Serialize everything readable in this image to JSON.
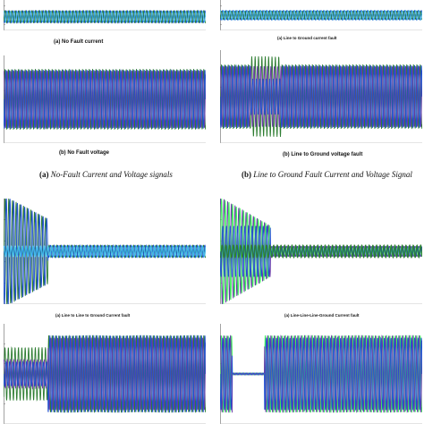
{
  "figure": {
    "group_a": {
      "label": "(a)",
      "text": "No-Fault Current and Voltage signals"
    },
    "group_b": {
      "label": "(b)",
      "text": "Line to Ground Fault Current and Voltage Signal"
    }
  },
  "colors": {
    "phase_a": "#1f4fd1",
    "phase_b": "#2e7d32",
    "phase_c": "#42b8e8",
    "phase_d": "#6a3aa8",
    "phase_e": "#3ef05a",
    "axis": "#666666"
  },
  "chart_data": [
    {
      "id": "no-fault-current",
      "type": "line",
      "title": "(a) No Fault current",
      "series": [
        {
          "values": [
            1,
            1,
            1
          ]
        }
      ]
    },
    {
      "id": "lg-current",
      "type": "line",
      "title": "(a) Line to Ground current fault",
      "series": [
        {
          "values": [
            1,
            1,
            1
          ]
        }
      ]
    },
    {
      "id": "no-fault-voltage",
      "type": "line",
      "title": "(b) No Fault voltage",
      "series": [
        {
          "values": [
            1,
            1,
            1
          ]
        }
      ]
    },
    {
      "id": "lg-voltage",
      "type": "line",
      "title": "(b) Line to Ground voltage fault",
      "series": [
        {
          "values": [
            1,
            1,
            1
          ]
        }
      ]
    },
    {
      "id": "llg-current",
      "type": "line",
      "title": "(a) Line to Line to Ground Current fault",
      "series": [
        {
          "values": [
            1,
            1,
            1
          ]
        }
      ]
    },
    {
      "id": "lllg-current",
      "type": "line",
      "title": "(a) Line-Line-Line-Ground Current fault",
      "series": [
        {
          "values": [
            1,
            1,
            1
          ]
        }
      ]
    },
    {
      "id": "llg-voltage",
      "type": "line",
      "title": "",
      "series": [
        {
          "values": [
            1,
            1,
            1
          ]
        }
      ]
    },
    {
      "id": "lllg-voltage",
      "type": "line",
      "title": "",
      "series": [
        {
          "values": [
            1,
            1,
            1
          ]
        }
      ]
    }
  ]
}
